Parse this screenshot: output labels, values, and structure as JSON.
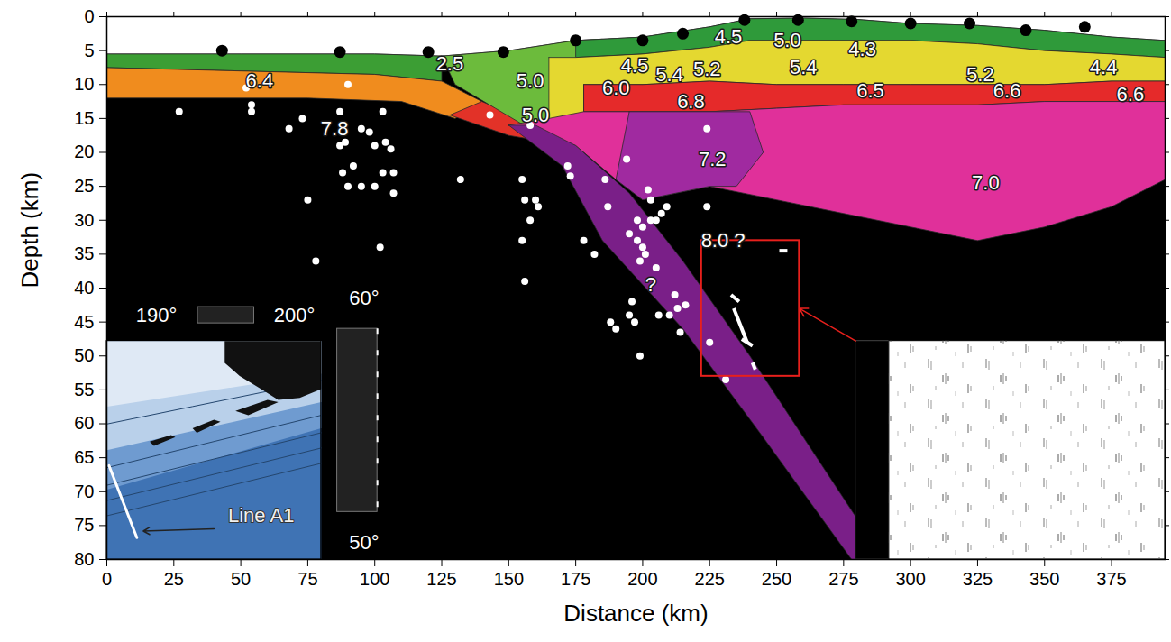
{
  "chart_data": {
    "type": "cross_section",
    "xlabel": "Distance (km)",
    "ylabel": "Depth (km)",
    "xlim": [
      0,
      395
    ],
    "ylim": [
      0,
      80
    ],
    "xticks": [
      0,
      25,
      50,
      75,
      100,
      125,
      150,
      175,
      200,
      225,
      250,
      275,
      300,
      325,
      350,
      375
    ],
    "yticks": [
      0,
      5,
      10,
      15,
      20,
      25,
      30,
      35,
      40,
      45,
      50,
      55,
      60,
      65,
      70,
      75,
      80
    ],
    "layers": [
      {
        "color": "#000000",
        "points": [
          [
            0,
            0
          ],
          [
            395,
            0
          ],
          [
            395,
            80
          ],
          [
            0,
            80
          ]
        ]
      },
      {
        "color": "#ffffff",
        "points": [
          [
            0,
            0
          ],
          [
            395,
            0
          ],
          [
            395,
            3.5
          ],
          [
            375,
            3.0
          ],
          [
            350,
            2.0
          ],
          [
            325,
            1.3
          ],
          [
            300,
            1.0
          ],
          [
            280,
            0.4
          ],
          [
            260,
            0.2
          ],
          [
            240,
            0.3
          ],
          [
            225,
            1.5
          ],
          [
            200,
            3.0
          ],
          [
            175,
            3.5
          ],
          [
            150,
            5.0
          ],
          [
            125,
            5.8
          ],
          [
            100,
            5.5
          ],
          [
            50,
            5.5
          ],
          [
            0,
            5.5
          ]
        ]
      },
      {
        "color": "#3c9e34",
        "points": [
          [
            0,
            5.5
          ],
          [
            50,
            5.5
          ],
          [
            100,
            5.5
          ],
          [
            125,
            5.8
          ],
          [
            125,
            9.5
          ],
          [
            100,
            8.5
          ],
          [
            50,
            8
          ],
          [
            0,
            7.5
          ]
        ]
      },
      {
        "color": "#f08c1e",
        "points": [
          [
            0,
            7.5
          ],
          [
            50,
            8
          ],
          [
            100,
            8.5
          ],
          [
            125,
            9.5
          ],
          [
            140,
            12.5
          ],
          [
            130,
            15
          ],
          [
            110,
            12.5
          ],
          [
            75,
            12
          ],
          [
            0,
            12
          ]
        ]
      },
      {
        "color": "#e23228",
        "points": [
          [
            128,
            14.5
          ],
          [
            140,
            12.5
          ],
          [
            155,
            15
          ],
          [
            165,
            18.5
          ],
          [
            150,
            17.5
          ]
        ]
      },
      {
        "color": "#6cbb3c",
        "points": [
          [
            125,
            5.8
          ],
          [
            150,
            5.0
          ],
          [
            175,
            3.5
          ],
          [
            185,
            3.3
          ],
          [
            185,
            8
          ],
          [
            178,
            10
          ],
          [
            175,
            21.5
          ],
          [
            160,
            17
          ],
          [
            145,
            13.5
          ],
          [
            130,
            10
          ]
        ]
      },
      {
        "color": "#2f9a3a",
        "points": [
          [
            175,
            3.5
          ],
          [
            200,
            3.0
          ],
          [
            225,
            1.5
          ],
          [
            240,
            0.3
          ],
          [
            260,
            0.2
          ],
          [
            280,
            0.4
          ],
          [
            300,
            1.0
          ],
          [
            325,
            1.3
          ],
          [
            350,
            2.0
          ],
          [
            375,
            3.0
          ],
          [
            395,
            3.5
          ],
          [
            395,
            6
          ],
          [
            375,
            5.5
          ],
          [
            350,
            5
          ],
          [
            325,
            4
          ],
          [
            300,
            3.5
          ],
          [
            280,
            3.5
          ],
          [
            260,
            3.5
          ],
          [
            240,
            3.5
          ],
          [
            225,
            4.5
          ],
          [
            200,
            5.5
          ],
          [
            175,
            6
          ]
        ]
      },
      {
        "color": "#e4d830",
        "points": [
          [
            165,
            6
          ],
          [
            175,
            6
          ],
          [
            200,
            5.5
          ],
          [
            225,
            4.5
          ],
          [
            240,
            3.5
          ],
          [
            260,
            3.5
          ],
          [
            280,
            3.5
          ],
          [
            300,
            3.5
          ],
          [
            325,
            4
          ],
          [
            350,
            5
          ],
          [
            375,
            5.5
          ],
          [
            395,
            6
          ],
          [
            395,
            9.5
          ],
          [
            375,
            9.5
          ],
          [
            350,
            10
          ],
          [
            325,
            10
          ],
          [
            300,
            10
          ],
          [
            275,
            10
          ],
          [
            250,
            10
          ],
          [
            225,
            9.5
          ],
          [
            200,
            10
          ],
          [
            178,
            10
          ],
          [
            178,
            21
          ],
          [
            165,
            17
          ]
        ]
      },
      {
        "color": "#e52a2a",
        "points": [
          [
            178,
            10
          ],
          [
            200,
            10
          ],
          [
            225,
            9.5
          ],
          [
            250,
            10
          ],
          [
            275,
            10
          ],
          [
            300,
            10
          ],
          [
            325,
            10
          ],
          [
            350,
            10
          ],
          [
            375,
            9.5
          ],
          [
            395,
            9.5
          ],
          [
            395,
            12.5
          ],
          [
            375,
            12.5
          ],
          [
            350,
            12.5
          ],
          [
            325,
            13
          ],
          [
            300,
            13
          ],
          [
            275,
            13
          ],
          [
            250,
            13.5
          ],
          [
            225,
            14
          ],
          [
            200,
            14
          ],
          [
            178,
            14
          ]
        ]
      },
      {
        "color": "#e0309a",
        "points": [
          [
            150,
            16
          ],
          [
            165,
            15
          ],
          [
            178,
            14
          ],
          [
            200,
            14
          ],
          [
            225,
            14
          ],
          [
            250,
            13.5
          ],
          [
            275,
            13
          ],
          [
            300,
            13
          ],
          [
            325,
            13
          ],
          [
            350,
            12.5
          ],
          [
            375,
            12.5
          ],
          [
            395,
            12.5
          ],
          [
            395,
            24
          ],
          [
            375,
            28
          ],
          [
            350,
            31
          ],
          [
            325,
            33
          ],
          [
            300,
            31
          ],
          [
            275,
            29
          ],
          [
            250,
            27
          ],
          [
            225,
            25
          ],
          [
            200,
            27
          ],
          [
            190,
            24
          ],
          [
            175,
            19
          ],
          [
            160,
            17
          ]
        ]
      },
      {
        "color": "#a02aa0",
        "points": [
          [
            195,
            14
          ],
          [
            240,
            14
          ],
          [
            245,
            20
          ],
          [
            235,
            25
          ],
          [
            225,
            25
          ],
          [
            200,
            27
          ],
          [
            190,
            24
          ]
        ]
      },
      {
        "color": "#7a1f88",
        "points": [
          [
            150,
            16
          ],
          [
            170,
            22
          ],
          [
            185,
            33
          ],
          [
            215,
            46
          ],
          [
            245,
            62
          ],
          [
            278,
            80
          ],
          [
            290,
            80
          ],
          [
            265,
            65
          ],
          [
            240,
            50
          ],
          [
            215,
            36
          ],
          [
            195,
            26
          ],
          [
            175,
            19
          ],
          [
            160,
            16
          ]
        ]
      }
    ],
    "velocity_labels": [
      {
        "text": "6.4",
        "x": 57,
        "y": 9.5
      },
      {
        "text": "7.8",
        "x": 85,
        "y": 16.5
      },
      {
        "text": "2.5",
        "x": 128,
        "y": 7
      },
      {
        "text": "5.0",
        "x": 158,
        "y": 9.5
      },
      {
        "text": "5.0",
        "x": 160,
        "y": 14.5
      },
      {
        "text": "4.5",
        "x": 197,
        "y": 7.3
      },
      {
        "text": "6.0",
        "x": 190,
        "y": 10.5
      },
      {
        "text": "5.4",
        "x": 210,
        "y": 8.5
      },
      {
        "text": "5.2",
        "x": 224,
        "y": 7.8
      },
      {
        "text": "4.5",
        "x": 232,
        "y": 3
      },
      {
        "text": "5.0",
        "x": 254,
        "y": 3.5
      },
      {
        "text": "5.4",
        "x": 260,
        "y": 7.5
      },
      {
        "text": "4.3",
        "x": 282,
        "y": 4.8
      },
      {
        "text": "5.2",
        "x": 326,
        "y": 8.5
      },
      {
        "text": "4.4",
        "x": 372,
        "y": 7.5
      },
      {
        "text": "6.8",
        "x": 218,
        "y": 12.5
      },
      {
        "text": "6.5",
        "x": 285,
        "y": 11
      },
      {
        "text": "6.6",
        "x": 336,
        "y": 11
      },
      {
        "text": "6.6",
        "x": 382,
        "y": 11.5
      },
      {
        "text": "7.2",
        "x": 226,
        "y": 21
      },
      {
        "text": "7.0",
        "x": 328,
        "y": 24.5
      },
      {
        "text": "8.0 ?",
        "x": 230,
        "y": 33
      },
      {
        "text": "?",
        "x": 203,
        "y": 39.5
      }
    ],
    "earthquakes": [
      [
        27,
        14
      ],
      [
        52,
        10.5
      ],
      [
        54,
        13
      ],
      [
        54,
        14
      ],
      [
        68,
        16.5
      ],
      [
        73,
        15
      ],
      [
        75,
        27
      ],
      [
        78,
        36
      ],
      [
        87,
        14
      ],
      [
        87,
        19
      ],
      [
        88,
        23
      ],
      [
        89,
        18.5
      ],
      [
        90,
        10
      ],
      [
        90,
        25
      ],
      [
        92,
        22
      ],
      [
        95,
        25
      ],
      [
        95,
        16.5
      ],
      [
        98,
        17
      ],
      [
        100,
        25
      ],
      [
        100,
        19
      ],
      [
        102,
        34
      ],
      [
        103,
        23
      ],
      [
        103,
        14
      ],
      [
        104,
        18.5
      ],
      [
        106,
        19.5
      ],
      [
        107,
        23
      ],
      [
        107,
        26
      ],
      [
        132,
        24
      ],
      [
        143,
        14.5
      ],
      [
        155,
        24
      ],
      [
        156,
        27
      ],
      [
        158,
        30
      ],
      [
        155,
        33
      ],
      [
        156,
        39
      ],
      [
        158,
        16
      ],
      [
        160,
        27
      ],
      [
        161,
        28
      ],
      [
        172,
        22
      ],
      [
        173,
        23.5
      ],
      [
        178,
        33
      ],
      [
        182,
        35
      ],
      [
        186,
        24
      ],
      [
        187,
        28
      ],
      [
        188,
        45
      ],
      [
        190,
        46
      ],
      [
        194,
        21
      ],
      [
        195,
        32
      ],
      [
        195,
        44
      ],
      [
        196,
        42
      ],
      [
        197,
        45
      ],
      [
        198,
        30
      ],
      [
        198,
        33
      ],
      [
        199,
        36
      ],
      [
        199,
        50
      ],
      [
        200,
        31
      ],
      [
        200,
        34
      ],
      [
        201,
        35
      ],
      [
        202,
        25.5
      ],
      [
        203,
        27
      ],
      [
        203,
        30
      ],
      [
        205,
        30
      ],
      [
        205,
        37
      ],
      [
        206,
        44
      ],
      [
        207,
        29
      ],
      [
        209,
        28
      ],
      [
        210,
        44
      ],
      [
        212,
        41
      ],
      [
        213,
        43
      ],
      [
        214,
        46.5
      ],
      [
        216,
        42.5
      ],
      [
        224,
        16.5
      ],
      [
        224,
        28
      ],
      [
        225,
        48
      ],
      [
        231,
        53.5
      ]
    ],
    "stations": [
      [
        43,
        5
      ],
      [
        87,
        5.2
      ],
      [
        120,
        5.2
      ],
      [
        148,
        5.2
      ],
      [
        175,
        3.5
      ],
      [
        200,
        3.5
      ],
      [
        215,
        2.5
      ],
      [
        238,
        0.5
      ],
      [
        258,
        0.5
      ],
      [
        278,
        0.7
      ],
      [
        300,
        1
      ],
      [
        322,
        1
      ],
      [
        343,
        2
      ],
      [
        365,
        1.5
      ]
    ],
    "reflectors": [
      [
        [
          251,
          34.5
        ],
        [
          254,
          34.5
        ]
      ],
      [
        [
          233,
          41
        ],
        [
          236,
          42
        ]
      ],
      [
        [
          234,
          43
        ],
        [
          239,
          48
        ]
      ],
      [
        [
          237,
          47.5
        ],
        [
          241,
          48.5
        ]
      ],
      [
        [
          241,
          51
        ],
        [
          242,
          52
        ]
      ]
    ],
    "highlight_box": {
      "x": [
        222,
        258.5
      ],
      "y": [
        33,
        53
      ],
      "color": "#e8201c"
    },
    "inset_map": {
      "lon_labels": [
        "190°",
        "200°"
      ],
      "lat_labels": [
        "60°",
        "50°"
      ],
      "line_label": "Line A1"
    }
  }
}
